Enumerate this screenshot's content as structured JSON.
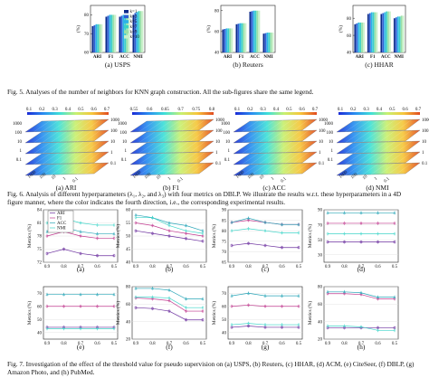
{
  "colors": {
    "k1": "#0b2a8a",
    "k3": "#2e5fd6",
    "k5": "#2bb2e8",
    "k7": "#3bd1c4",
    "k9": "#9ae0a6",
    "k10": "#c9f0c9",
    "ARI": "#6b2f9e",
    "F1": "#c0398e",
    "ACC": "#2aa6b8",
    "NMI": "#3fd5c9"
  },
  "fig5": {
    "legend": [
      "k=1",
      "k=3",
      "k=5",
      "k=7",
      "k=9",
      "k=10"
    ],
    "subfigures": [
      {
        "label": "(a) USPS",
        "ylabel": "(%)",
        "ylim": [
          60,
          85
        ],
        "yticks": [
          "60",
          "70",
          "80"
        ],
        "categories": [
          "ARI",
          "F1",
          "ACC",
          "NMI"
        ],
        "series": [
          [
            74,
            79,
            79,
            80
          ],
          [
            74.5,
            79.5,
            79.5,
            81
          ],
          [
            75,
            80,
            80,
            81.5
          ],
          [
            75,
            80,
            80,
            82
          ],
          [
            75,
            80,
            80,
            82
          ],
          [
            75,
            80,
            80,
            82
          ]
        ]
      },
      {
        "label": "(b) Reuters",
        "ylabel": "(%)",
        "ylim": [
          40,
          85
        ],
        "yticks": [
          "40",
          "60",
          "80"
        ],
        "categories": [
          "ARI",
          "F1",
          "ACC",
          "NMI"
        ],
        "series": [
          [
            62,
            67,
            79,
            58
          ],
          [
            62.5,
            67.5,
            79.5,
            58.5
          ],
          [
            63,
            68,
            80,
            59
          ],
          [
            63,
            68,
            80,
            59
          ],
          [
            63,
            68,
            80,
            59
          ],
          [
            63,
            68,
            80,
            59
          ]
        ]
      },
      {
        "label": "(c) HHAR",
        "ylabel": "(%)",
        "ylim": [
          40,
          95
        ],
        "yticks": [
          "40",
          "60",
          "80"
        ],
        "categories": [
          "ARI",
          "F1",
          "ACC",
          "NMI"
        ],
        "series": [
          [
            73,
            85,
            85,
            80
          ],
          [
            74,
            86,
            86,
            81
          ],
          [
            75,
            87,
            87,
            82
          ],
          [
            75,
            87,
            88,
            82
          ],
          [
            75,
            87,
            88,
            83
          ],
          [
            75,
            87,
            88,
            83
          ]
        ]
      }
    ],
    "caption": "Fig. 5.   Analyses of the number of neighbors for KNN graph construction. All the sub-figures share the same legend."
  },
  "fig6": {
    "colorbar_ticks": [
      "0.1",
      "0.2",
      "0.3",
      "0.4",
      "0.5",
      "0.6",
      "0.7"
    ],
    "colorbar_ticks_b": [
      "0.55",
      "0.6",
      "0.65",
      "0.7",
      "0.75",
      "0.8"
    ],
    "ax_ticks": [
      "1000",
      "100",
      "10",
      "1",
      "0.1"
    ],
    "subfigures": [
      {
        "label": "(a) ARI"
      },
      {
        "label": "(b) F1"
      },
      {
        "label": "(c) ACC"
      },
      {
        "label": "(d) NMI"
      }
    ],
    "caption_l1": "Fig. 6.   Analysis of different hyperparameters (λ₁, λ₂, and λ₃) with four metrics on DBLP. We illustrate the results w.r.t. these hyperparameters in a 4D",
    "caption_l2": "figure manner, where the color indicates the fourth direction, i.e., the corresponding experimental results."
  },
  "fig7": {
    "ylabel": "Metrics (%)",
    "x": [
      "0.9",
      "0.8",
      "0.7",
      "0.6",
      "0.5"
    ],
    "legend": [
      "ARI",
      "F1",
      "ACC",
      "NMI"
    ],
    "panels": [
      {
        "label": "(a)",
        "ylim": [
          72,
          84
        ],
        "yticks": [
          "72",
          "75",
          "78",
          "81",
          "84"
        ],
        "series": {
          "ARI": [
            74,
            75,
            74,
            73.5,
            73.5
          ],
          "F1": [
            78,
            79,
            78,
            77.5,
            77.5
          ],
          "ACC": [
            79,
            80,
            79,
            78.5,
            78.5
          ],
          "NMI": [
            81,
            82,
            81,
            80.5,
            80.5
          ]
        }
      },
      {
        "label": "(b)",
        "ylim": [
          40,
          60
        ],
        "yticks": [
          "40",
          "45",
          "50",
          "55",
          "60"
        ],
        "series": {
          "ARI": [
            52,
            51,
            50,
            49,
            48
          ],
          "F1": [
            55,
            54,
            52,
            51,
            50
          ],
          "ACC": [
            58,
            57,
            55,
            54,
            52
          ],
          "NMI": [
            57,
            57,
            54,
            52,
            51
          ]
        }
      },
      {
        "label": "(c)",
        "ylim": [
          65,
          90
        ],
        "yticks": [
          "65",
          "70",
          "75",
          "80",
          "85",
          "90"
        ],
        "series": {
          "ARI": [
            73,
            74,
            73,
            72,
            72
          ],
          "F1": [
            84,
            85,
            84,
            83,
            83
          ],
          "ACC": [
            84,
            86,
            84,
            83,
            83
          ],
          "NMI": [
            80,
            81,
            80,
            79,
            79
          ]
        }
      },
      {
        "label": "(d)",
        "ylim": [
          20,
          90
        ],
        "yticks": [
          "30",
          "50",
          "70",
          "90"
        ],
        "series": {
          "ARI": [
            47,
            47,
            47,
            47,
            47
          ],
          "F1": [
            72,
            72,
            72,
            72,
            72
          ],
          "ACC": [
            86,
            86,
            86,
            86,
            86
          ],
          "NMI": [
            58,
            58,
            58,
            58,
            58
          ]
        }
      },
      {
        "label": "(e)",
        "ylim": [
          35,
          75
        ],
        "yticks": [
          "40",
          "50",
          "60",
          "70"
        ],
        "series": {
          "ARI": [
            44,
            44,
            44,
            44,
            44
          ],
          "F1": [
            60,
            60,
            60,
            60,
            60
          ],
          "ACC": [
            69,
            69,
            69,
            69,
            69
          ],
          "NMI": [
            43,
            43,
            43,
            43,
            43
          ]
        }
      },
      {
        "label": "(f)",
        "ylim": [
          20,
          80
        ],
        "yticks": [
          "20",
          "40",
          "60",
          "80"
        ],
        "series": {
          "ARI": [
            56,
            55,
            52,
            42,
            42
          ],
          "F1": [
            67,
            66,
            64,
            52,
            52
          ],
          "ACC": [
            78,
            78,
            76,
            66,
            66
          ],
          "NMI": [
            68,
            68,
            67,
            56,
            56
          ]
        }
      },
      {
        "label": "(g)",
        "ylim": [
          35,
          75
        ],
        "yticks": [
          "40",
          "50",
          "60",
          "70"
        ],
        "series": {
          "ARI": [
            44,
            45,
            44,
            44,
            44
          ],
          "F1": [
            60,
            61,
            60,
            60,
            60
          ],
          "ACC": [
            68,
            70,
            68,
            68,
            68
          ],
          "NMI": [
            46,
            47,
            46,
            46,
            46
          ]
        }
      },
      {
        "label": "(h)",
        "ylim": [
          20,
          80
        ],
        "yticks": [
          "20",
          "40",
          "60",
          "80"
        ],
        "series": {
          "ARI": [
            33,
            33,
            33,
            33,
            33
          ],
          "F1": [
            72,
            72,
            71,
            66,
            66
          ],
          "ACC": [
            74,
            74,
            73,
            68,
            68
          ],
          "NMI": [
            35,
            35,
            34,
            30,
            30
          ]
        }
      }
    ],
    "caption_l1": "Fig. 7.   Investigation of the effect of the threshold value for pseudo supervision on (a) USPS, (b) Reuters, (c) HHAR, (d) ACM, (e) CiteSeer, (f) DBLP, (g)",
    "caption_l2": "Amazon Photo, and (h) PubMed."
  }
}
